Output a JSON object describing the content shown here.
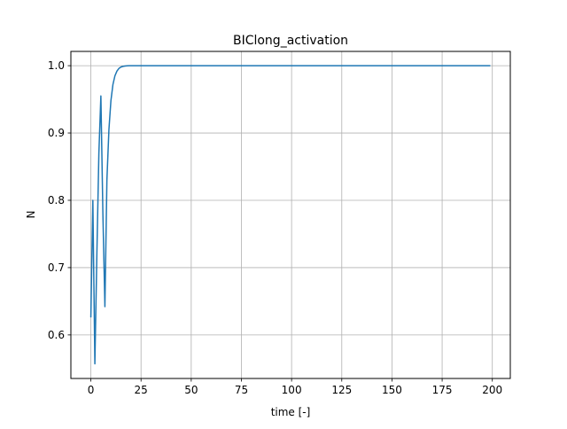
{
  "chart_data": {
    "type": "line",
    "title": "BIClong_activation",
    "xlabel": "time [-]",
    "ylabel": "N",
    "xlim": [
      -9.95,
      208.95
    ],
    "ylim": [
      0.5353,
      1.0212
    ],
    "xticks": [
      0,
      25,
      50,
      75,
      100,
      125,
      150,
      175,
      200
    ],
    "yticks": [
      0.6,
      0.7,
      0.8,
      0.9,
      1.0
    ],
    "xtick_labels": [
      "0",
      "25",
      "50",
      "75",
      "100",
      "125",
      "150",
      "175",
      "200"
    ],
    "ytick_labels": [
      "0.6",
      "0.7",
      "0.8",
      "0.9",
      "1.0"
    ],
    "grid": true,
    "line_color": "#1f77b4",
    "grid_color": "#b0b0b0",
    "series": [
      {
        "x": [
          0,
          1,
          2,
          3,
          4,
          5,
          6,
          7,
          8,
          9,
          10,
          11,
          12,
          13,
          14,
          15,
          16,
          17,
          18,
          19,
          20,
          22,
          25,
          30,
          40,
          60,
          100,
          150,
          199
        ],
        "values": [
          0.626,
          0.8,
          0.557,
          0.72,
          0.87,
          0.955,
          0.78,
          0.642,
          0.83,
          0.905,
          0.948,
          0.972,
          0.985,
          0.992,
          0.996,
          0.998,
          0.999,
          0.9995,
          0.9998,
          0.9999,
          1.0,
          1.0,
          1.0,
          1.0,
          1.0,
          1.0,
          1.0,
          1.0,
          1.0
        ]
      }
    ]
  }
}
